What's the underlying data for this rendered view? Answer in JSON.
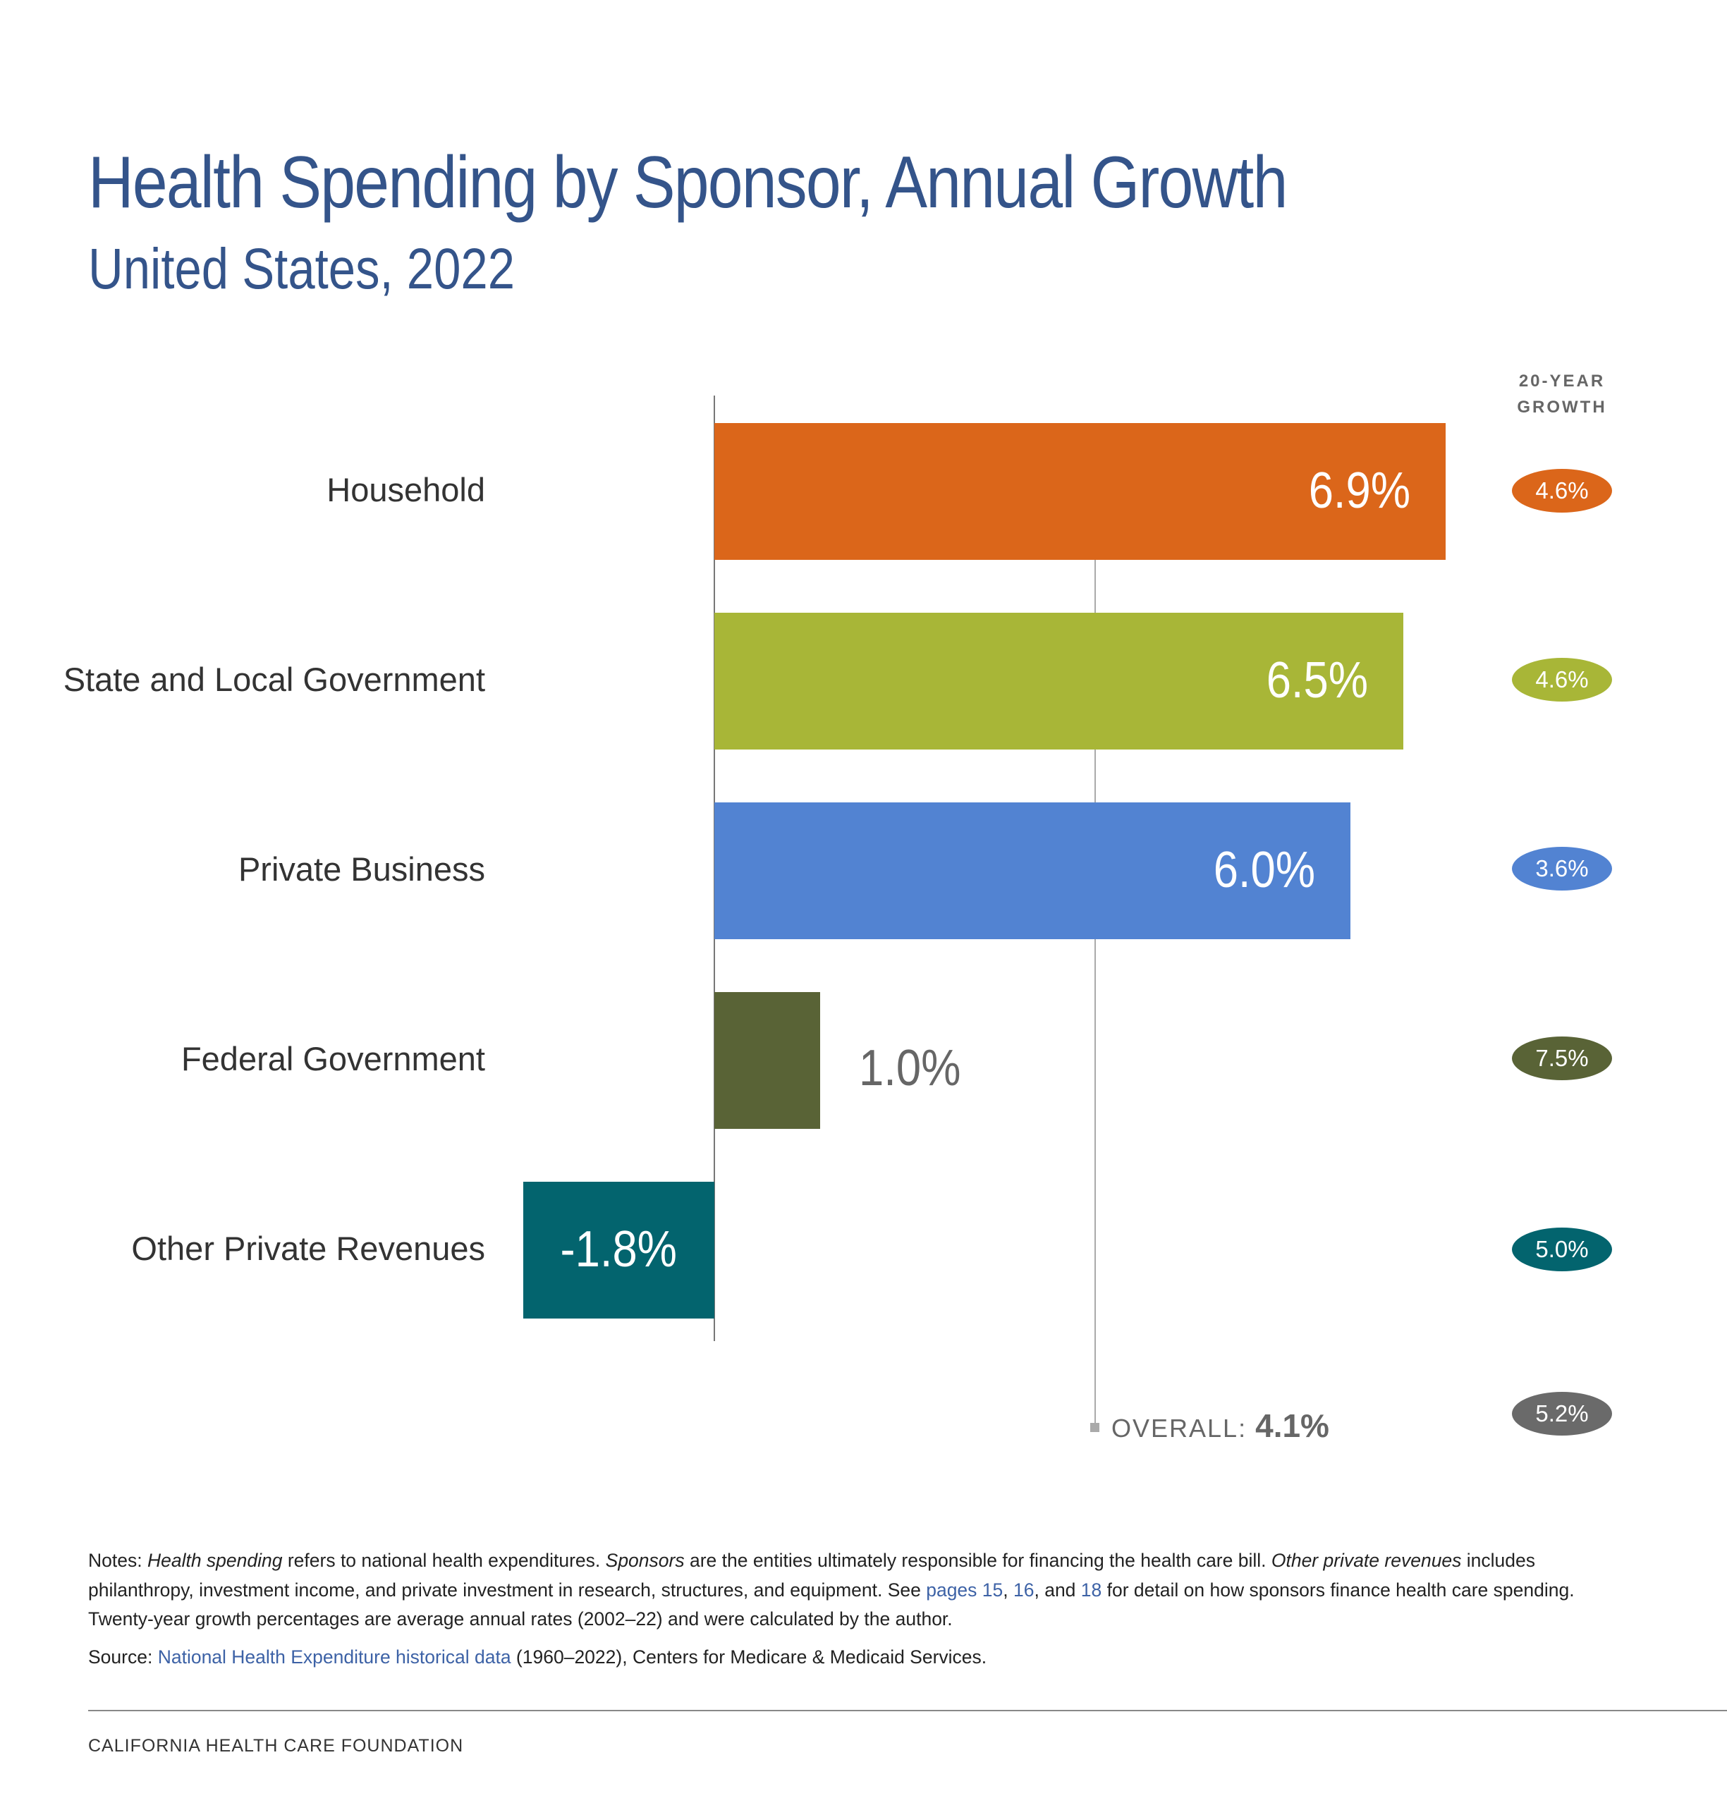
{
  "title": "Health Spending by Sponsor, Annual Growth",
  "subtitle": "United States, 2022",
  "chart_data": {
    "type": "bar",
    "orientation": "horizontal",
    "title": "Health Spending by Sponsor, Annual Growth",
    "subtitle": "United States, 2022",
    "categories": [
      "Household",
      "State and Local Government",
      "Private Business",
      "Federal Government",
      "Other Private Revenues"
    ],
    "values": [
      6.9,
      6.5,
      6.0,
      1.0,
      -1.8
    ],
    "value_labels": [
      "6.9%",
      "6.5%",
      "6.0%",
      "1.0%",
      "-1.8%"
    ],
    "colors": [
      "#db661a",
      "#a8b637",
      "#5283d2",
      "#596336",
      "#03646e"
    ],
    "reference_line": {
      "label": "OVERALL:",
      "value": 4.1,
      "value_label": "4.1%"
    },
    "twenty_year_growth": {
      "header": "20-YEAR GROWTH",
      "values": [
        4.6,
        4.6,
        3.6,
        7.5,
        5.0,
        5.2
      ],
      "labels": [
        "4.6%",
        "4.6%",
        "3.6%",
        "7.5%",
        "5.0%",
        "5.2%"
      ],
      "colors": [
        "#db661a",
        "#a8b637",
        "#5283d2",
        "#596336",
        "#03646e",
        "#6a6a6a"
      ]
    },
    "grid": false
  },
  "notes": {
    "prefix": "Notes: ",
    "line1_i1": "Health spending",
    "line1_t1": " refers to national health expenditures. ",
    "line1_i2": "Sponsors",
    "line1_t2": " are the entities ultimately responsible for financing the health care bill. ",
    "line1_i3": "Other private revenues",
    "line1_t3": " includes",
    "line2_t1": "philanthropy, investment income, and private investment in research, structures, and equipment. See ",
    "link_pages": "pages 15",
    "sep1": ", ",
    "link_16": "16",
    "sep2": ", and ",
    "link_18": "18",
    "line2_t2": " for detail on how sponsors finance health care spending.",
    "line3": "Twenty-year growth percentages are average annual rates (2002–22) and were calculated by the author."
  },
  "source": {
    "prefix": "Source: ",
    "link": "National Health Expenditure historical data",
    "suffix": " (1960–2022), Centers for Medicare & Medicaid Services."
  },
  "footer": "CALIFORNIA HEALTH CARE FOUNDATION"
}
